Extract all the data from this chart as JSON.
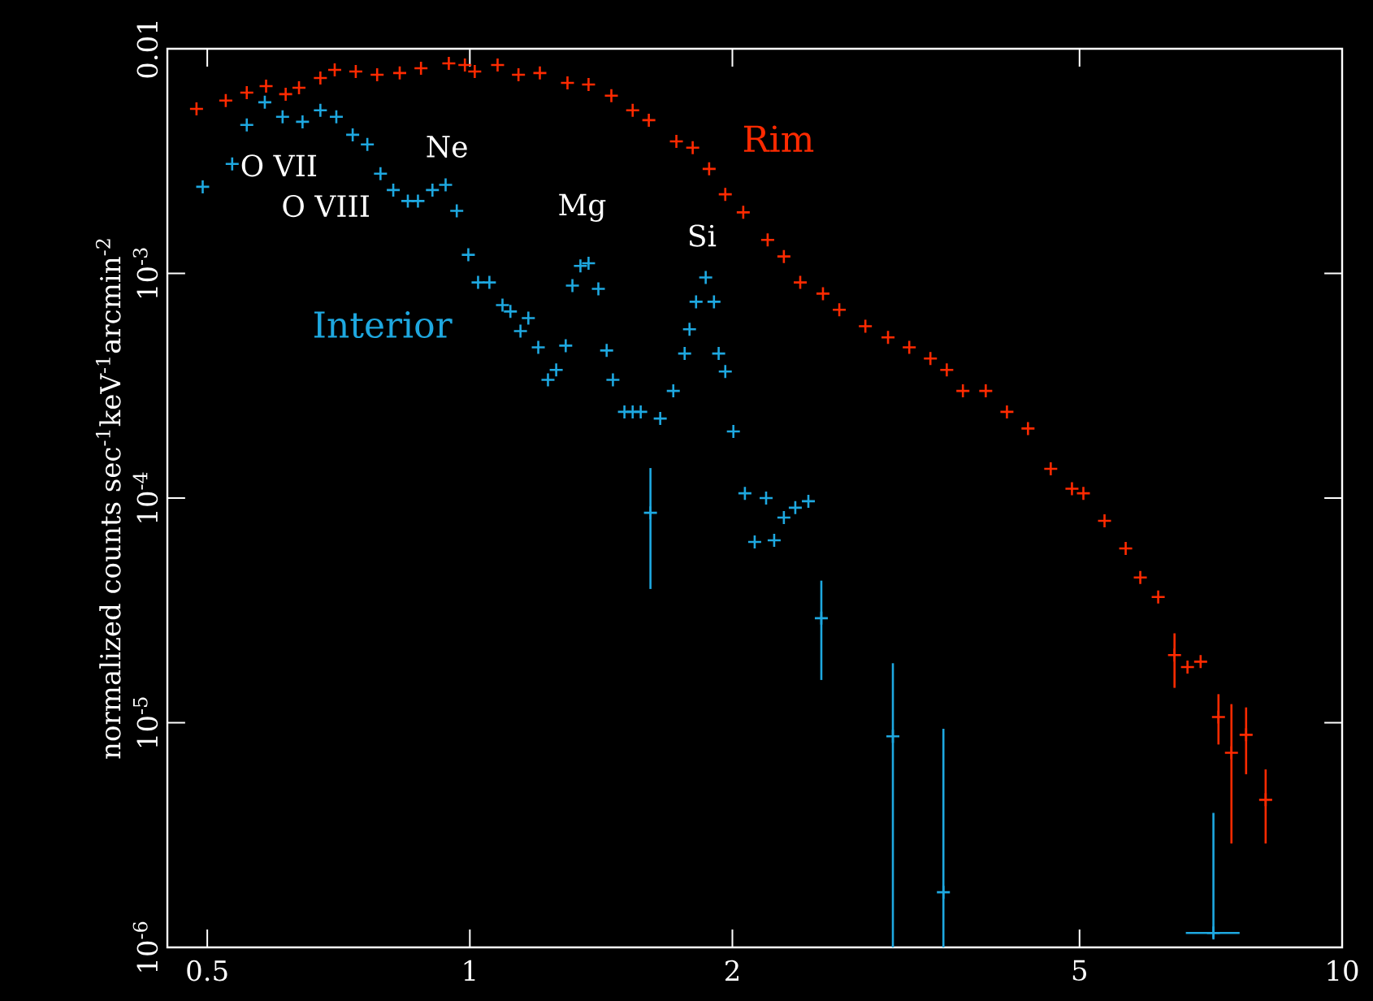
{
  "chart_data": {
    "type": "scatter",
    "ylabel": "normalized counts sec$^{-1}$keV$^{-1}$arcmin$^{-2}$",
    "log": "xy",
    "marker": "cross",
    "xlim": [
      0.45,
      10
    ],
    "ylim": [
      1e-06,
      0.01
    ],
    "xticks": [
      0.5,
      1,
      2,
      5,
      10
    ],
    "yticks": [
      {
        "value": 1e-06,
        "label": "10$^{-6}$"
      },
      {
        "value": 1e-05,
        "label": "10$^{-5}$"
      },
      {
        "value": 0.0001,
        "label": "10$^{-4}$"
      },
      {
        "value": 0.001,
        "label": "10$^{-3}$"
      },
      0.01
    ],
    "annotations": [
      "O VII",
      "O VIII",
      "Ne",
      "Mg",
      "Si"
    ],
    "series": [
      {
        "name": "Rim",
        "color": "#ff2a00",
        "x": [
          0.486,
          0.525,
          0.555,
          0.584,
          0.615,
          0.637,
          0.674,
          0.7,
          0.74,
          0.783,
          0.831,
          0.879,
          0.946,
          0.987,
          1.013,
          1.076,
          1.137,
          1.203,
          1.294,
          1.368,
          1.453,
          1.537,
          1.604,
          1.725,
          1.801,
          1.881,
          1.963,
          2.058,
          2.195,
          2.291,
          2.392,
          2.54,
          2.652,
          2.841,
          3.016,
          3.19,
          3.373,
          3.522,
          3.675,
          3.904,
          4.128,
          4.364,
          4.634,
          4.901,
          5.051,
          5.341,
          5.648,
          5.87,
          6.154,
          6.425,
          6.649,
          6.883,
          7.216,
          7.467,
          7.762,
          8.172
        ],
        "values": [
          0.0054,
          0.00588,
          0.00638,
          0.00682,
          0.00628,
          0.00671,
          0.00741,
          0.00805,
          0.00792,
          0.00766,
          0.0078,
          0.00819,
          0.00861,
          0.00847,
          0.00792,
          0.00847,
          0.00766,
          0.0078,
          0.00705,
          0.00693,
          0.00618,
          0.00532,
          0.00481,
          0.00387,
          0.00363,
          0.00292,
          0.00225,
          0.00187,
          0.00141,
          0.00119,
          0.000912,
          0.000813,
          0.000689,
          0.000582,
          0.000519,
          0.000469,
          0.000418,
          0.000372,
          0.0003,
          0.0003,
          0.000242,
          0.000204,
          0.000135,
          0.00011,
          0.000105,
          7.92e-05,
          5.97e-05,
          4.43e-05,
          3.63e-05,
          2e-05,
          1.77e-05,
          1.87e-05,
          1.06e-05,
          7.35e-06,
          8.84e-06,
          4.54e-06
        ],
        "errors": [
          null,
          null,
          null,
          null,
          null,
          null,
          null,
          null,
          null,
          null,
          null,
          null,
          null,
          null,
          null,
          null,
          null,
          null,
          null,
          null,
          null,
          null,
          null,
          null,
          null,
          null,
          null,
          null,
          null,
          null,
          null,
          null,
          null,
          null,
          null,
          null,
          null,
          null,
          null,
          null,
          null,
          null,
          null,
          null,
          null,
          null,
          null,
          null,
          null,
          [
            1.43e-05,
            2.5e-05
          ],
          null,
          null,
          [
            8e-06,
            1.34e-05
          ],
          [
            2.9e-06,
            1.21e-05
          ],
          [
            5.9e-06,
            1.17e-05
          ],
          [
            2.9e-06,
            6.2e-06
          ]
        ]
      },
      {
        "name": "Interior",
        "color": "#1ea8e0",
        "x": [
          0.494,
          0.534,
          0.555,
          0.582,
          0.61,
          0.643,
          0.674,
          0.703,
          0.734,
          0.763,
          0.79,
          0.817,
          0.849,
          0.872,
          0.906,
          0.938,
          0.966,
          0.996,
          1.022,
          1.053,
          1.09,
          1.113,
          1.143,
          1.167,
          1.198,
          1.229,
          1.256,
          1.288,
          1.311,
          1.339,
          1.368,
          1.404,
          1.435,
          1.459,
          1.504,
          1.537,
          1.57,
          1.611,
          1.653,
          1.711,
          1.763,
          1.786,
          1.817,
          1.864,
          1.905,
          1.929,
          1.963,
          2.005,
          2.067,
          2.121,
          2.186,
          2.233,
          2.291,
          2.361,
          2.444,
          2.529,
          3.055,
          3.491,
          7.12
        ],
        "values": [
          0.00243,
          0.00307,
          0.00458,
          0.00578,
          0.00498,
          0.00473,
          0.00532,
          0.00498,
          0.00414,
          0.00375,
          0.00278,
          0.00235,
          0.0021,
          0.0021,
          0.00235,
          0.00248,
          0.0019,
          0.00121,
          0.000912,
          0.000912,
          0.000723,
          0.000677,
          0.000554,
          0.000633,
          0.000469,
          0.000336,
          0.000372,
          0.000477,
          0.000883,
          0.00108,
          0.00111,
          0.000854,
          0.000454,
          0.000336,
          0.000242,
          0.000242,
          0.000242,
          8.6e-05,
          0.000226,
          0.0003,
          0.00044,
          0.000564,
          0.000748,
          0.000959,
          0.000748,
          0.00044,
          0.000366,
          0.000198,
          0.000105,
          6.38e-05,
          0.0001,
          6.49e-05,
          8.19e-05,
          9.06e-05,
          9.68e-05,
          2.92e-05,
          8.7e-06,
          1.76e-06,
          1.16e-06
        ],
        "errors": [
          null,
          null,
          null,
          null,
          null,
          null,
          null,
          null,
          null,
          null,
          null,
          null,
          null,
          null,
          null,
          null,
          null,
          null,
          null,
          null,
          null,
          null,
          null,
          null,
          null,
          null,
          null,
          null,
          null,
          null,
          null,
          null,
          null,
          null,
          null,
          null,
          null,
          [
            3.94e-05,
            0.000136
          ],
          null,
          null,
          null,
          null,
          null,
          null,
          null,
          null,
          null,
          null,
          null,
          null,
          null,
          null,
          null,
          null,
          null,
          [
            1.55e-05,
            4.29e-05
          ],
          [
            1e-06,
            1.84e-05
          ],
          [
            1e-06,
            9.4e-06
          ],
          [
            1.1e-06,
            3.97e-06
          ]
        ],
        "xerrors": [
          null,
          null,
          null,
          null,
          null,
          null,
          null,
          null,
          null,
          null,
          null,
          null,
          null,
          null,
          null,
          null,
          null,
          null,
          null,
          null,
          null,
          null,
          null,
          null,
          null,
          null,
          null,
          null,
          null,
          null,
          null,
          null,
          null,
          null,
          null,
          null,
          null,
          null,
          null,
          null,
          null,
          null,
          null,
          null,
          null,
          null,
          null,
          null,
          null,
          null,
          null,
          null,
          null,
          null,
          null,
          null,
          null,
          null,
          [
            6.62,
            7.63
          ]
        ]
      }
    ]
  }
}
